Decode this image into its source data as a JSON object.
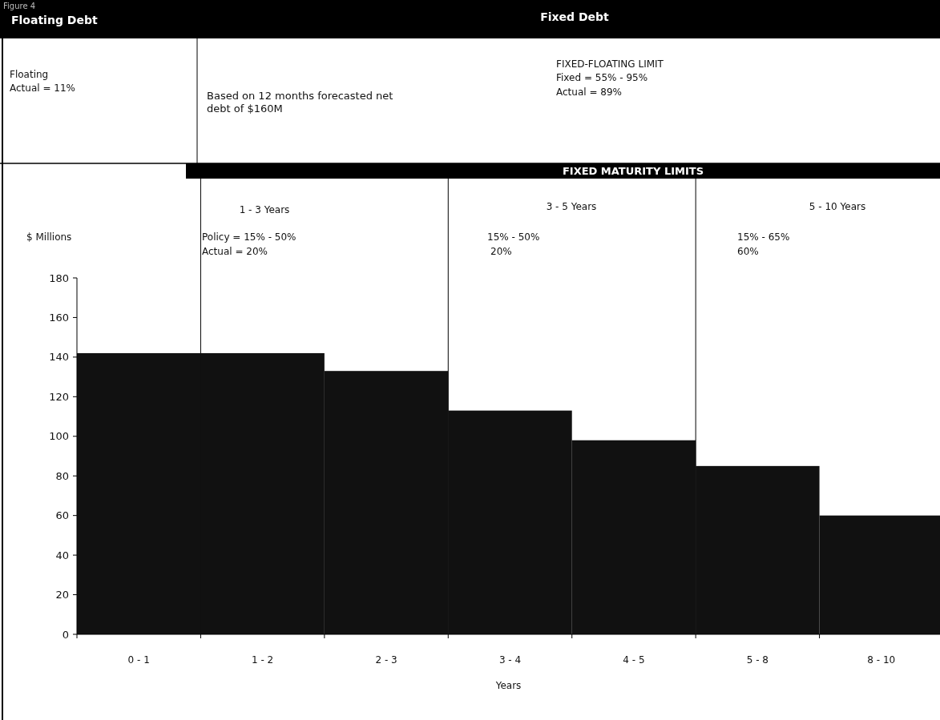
{
  "chart_data": {
    "type": "bar",
    "title": "Figure 4",
    "xlabel": "Years",
    "ylabel": "$ Millions",
    "categories": [
      "0 - 1",
      "1 - 2",
      "2 - 3",
      "3 - 4",
      "4 - 5",
      "5 - 8",
      "8 - 10"
    ],
    "values": [
      142,
      142,
      133,
      113,
      98,
      85,
      60
    ],
    "color": "#111111",
    "ylim": [
      0,
      180
    ],
    "yticks": [
      0,
      20,
      40,
      60,
      80,
      100,
      120,
      140,
      160,
      180
    ],
    "annotations": [
      "Floating Debt",
      "Fixed Debt",
      "Floating",
      "Actual =  11%",
      "Based on 12 months forecasted net",
      "debt of $160M",
      "FIXED-FLOATING LIMIT",
      "Fixed      = 55% - 95%",
      "Actual   = 89%",
      "FIXED MATURITY LIMITS",
      "1 - 3 Years",
      "Policy =  15% - 50%",
      "Actual =  20%",
      "3 - 5 Years",
      "15% - 50%",
      "20%",
      "5 - 10 Years",
      "15% - 65%",
      "60%"
    ]
  }
}
